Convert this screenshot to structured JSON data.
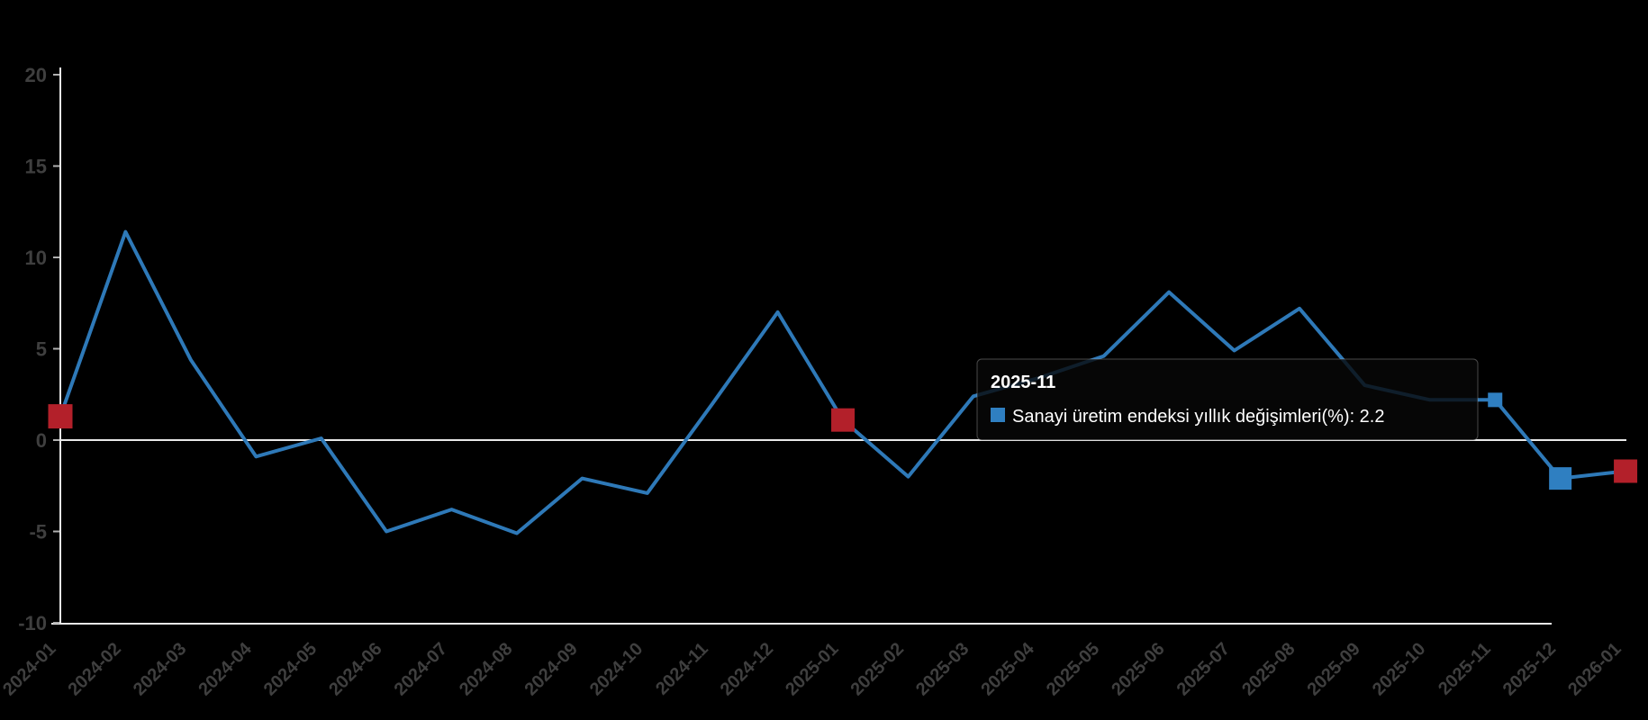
{
  "chart_data": {
    "type": "line",
    "title": "",
    "x_labels": [
      "2024-01",
      "2024-02",
      "2024-03",
      "2024-04",
      "2024-05",
      "2024-06",
      "2024-07",
      "2024-08",
      "2024-09",
      "2024-10",
      "2024-11",
      "2024-12",
      "2025-01",
      "2025-02",
      "2025-03",
      "2025-04",
      "2025-05",
      "2025-06",
      "2025-07",
      "2025-08",
      "2025-09",
      "2025-10",
      "2025-11",
      "2025-12",
      "2026-01"
    ],
    "series": [
      {
        "name": "Sanayi üretim endeksi yıllık değişimleri(%)",
        "values": [
          1.3,
          11.4,
          4.4,
          -0.9,
          0.1,
          -5.0,
          -3.8,
          -5.1,
          -2.1,
          -2.9,
          2.0,
          7.0,
          1.1,
          -2.0,
          2.4,
          3.4,
          4.6,
          8.1,
          4.9,
          7.2,
          3.0,
          2.2,
          2.2,
          -2.1,
          -1.7
        ]
      }
    ],
    "ylim": [
      -10,
      20
    ],
    "y_ticks": [
      20,
      15,
      10,
      5,
      0,
      -5,
      -10
    ],
    "grid": "zero-baseline-only",
    "legend_position": "tooltip-only",
    "colors": {
      "background": "#000000",
      "line": "#2e79b8",
      "marker_blue": "#2f7fc1",
      "marker_red": "#b3202a",
      "axis": "#e8e8e8",
      "tick": "#b0b0b0",
      "tick_label": "#3f3f3f",
      "tooltip_bg": "rgba(8,8,8,0.8)",
      "tooltip_border": "rgba(180,180,180,0.4)",
      "tooltip_text": "#ffffff"
    },
    "highlight_markers": [
      {
        "x_label": "2024-01",
        "index": 0,
        "color": "red",
        "size": 27
      },
      {
        "x_label": "2025-01",
        "index": 12,
        "color": "red",
        "size": 26
      },
      {
        "x_label": "2025-11",
        "index": 22,
        "color": "blue",
        "size": 16
      },
      {
        "x_label": "2025-12",
        "index": 23,
        "color": "blue",
        "size": 25
      },
      {
        "x_label": "2026-01",
        "index": 24,
        "color": "red",
        "size": 26
      }
    ],
    "tooltip": {
      "title": "2025-11",
      "series_label": "Sanayi üretim endeksi yıllık değişimleri(%)",
      "value": "2.2",
      "text": "Sanayi üretim endeksi yıllık değişimleri(%): 2.2"
    }
  }
}
